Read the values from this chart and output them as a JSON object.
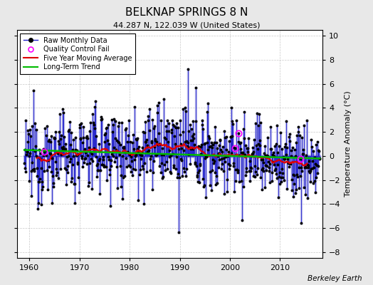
{
  "title": "BELKNAP SPRINGS 8 N",
  "subtitle": "44.287 N, 122.039 W (United States)",
  "ylabel": "Temperature Anomaly (°C)",
  "credit": "Berkeley Earth",
  "xlim": [
    1957.5,
    2018.5
  ],
  "ylim": [
    -8.5,
    10.5
  ],
  "yticks": [
    -8,
    -6,
    -4,
    -2,
    0,
    2,
    4,
    6,
    8,
    10
  ],
  "xticks": [
    1960,
    1970,
    1980,
    1990,
    2000,
    2010
  ],
  "raw_color": "#2222cc",
  "raw_fill_color": "#8888dd",
  "ma_color": "#dd0000",
  "trend_color": "#00bb00",
  "qc_color": "#ff00ff",
  "bg_color": "#e8e8e8",
  "plot_bg": "#ffffff",
  "grid_color": "#bbbbbb",
  "seed": 12345
}
